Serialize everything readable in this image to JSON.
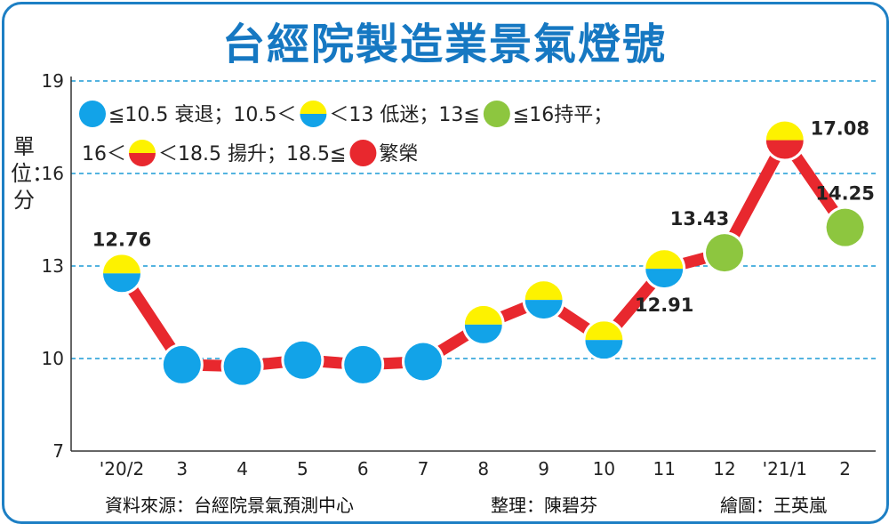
{
  "title": "台經院製造業景氣燈號",
  "unit_label": "單位：分",
  "footer": {
    "source": "資料來源：台經院景氣預測中心",
    "compiler": "整理：陳碧芬",
    "illustrator": "繪圖：王英嵐"
  },
  "legend": {
    "row1": [
      {
        "icon": "blue-light",
        "text": "≦10.5 衰退；10.5＜"
      },
      {
        "icon": "yellow-blue-light",
        "text": "＜13 低迷；13≦"
      },
      {
        "icon": "green-light",
        "text": "≦16持平；"
      }
    ],
    "row2": [
      {
        "prefix": "16＜",
        "icon": "yellow-red-light",
        "text": "＜18.5 揚升；18.5≦"
      },
      {
        "icon": "red-light",
        "text": "繁榮"
      }
    ]
  },
  "colors": {
    "blue": "#12a3e8",
    "yellow": "#fdf200",
    "green": "#8dc63f",
    "red": "#e8282e",
    "grid": "#1a9ad6",
    "title": "#1678c2"
  },
  "chart_data": {
    "type": "line",
    "title": "台經院製造業景氣燈號",
    "ylabel": "單位：分",
    "ylim": [
      7,
      19
    ],
    "yticks": [
      7,
      10,
      13,
      16,
      19
    ],
    "grid": "dashed horizontal at 10, 13, 16, 19",
    "categories": [
      "'20/2",
      "3",
      "4",
      "5",
      "6",
      "7",
      "8",
      "9",
      "10",
      "11",
      "12",
      "'21/1",
      "2"
    ],
    "series": [
      {
        "values": [
          12.76,
          9.8,
          9.75,
          9.95,
          9.8,
          9.9,
          11.1,
          11.9,
          10.6,
          12.91,
          13.43,
          17.08,
          14.25
        ],
        "lights": [
          "yellow-blue",
          "blue",
          "blue",
          "blue",
          "blue",
          "blue",
          "yellow-blue",
          "yellow-blue",
          "yellow-blue",
          "yellow-blue",
          "green",
          "yellow-red",
          "green"
        ]
      }
    ],
    "data_labels": [
      {
        "index": 0,
        "text": "12.76",
        "pos": "above"
      },
      {
        "index": 9,
        "text": "12.91",
        "pos": "below"
      },
      {
        "index": 10,
        "text": "13.43",
        "pos": "above-left"
      },
      {
        "index": 11,
        "text": "17.08",
        "pos": "right"
      },
      {
        "index": 12,
        "text": "14.25",
        "pos": "above"
      }
    ]
  }
}
